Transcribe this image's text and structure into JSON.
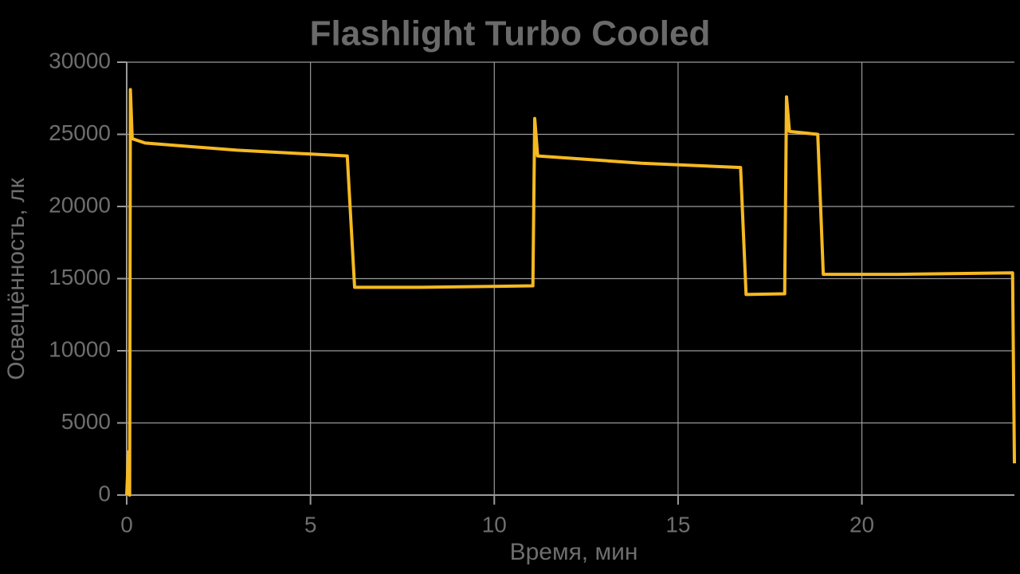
{
  "chart_data": {
    "type": "line",
    "title": "Flashlight Turbo Cooled",
    "x_label": "Время, мин",
    "y_label": "Освещённость, лк",
    "x": [
      0,
      0.05,
      0.08,
      0.1,
      0.15,
      0.5,
      3,
      6.0,
      6.2,
      8,
      11.05,
      11.1,
      11.18,
      14,
      16.7,
      16.85,
      17.9,
      17.95,
      18.03,
      18.8,
      18.95,
      21,
      24.1,
      24.15
    ],
    "series": [
      {
        "name": "Освещённость",
        "color": "#f5b921",
        "values": [
          0,
          3000,
          0,
          28100,
          24700,
          24400,
          23900,
          23500,
          14400,
          14400,
          14500,
          26100,
          23500,
          23000,
          22700,
          13900,
          13950,
          27600,
          25200,
          25000,
          15300,
          15300,
          15400,
          2200
        ]
      }
    ],
    "xlim": [
      0,
      24.15
    ],
    "ylim": [
      0,
      30000
    ],
    "xticks": [
      0,
      5,
      10,
      15,
      20
    ],
    "yticks": [
      0,
      5000,
      10000,
      15000,
      20000,
      25000,
      30000
    ],
    "grid": true
  }
}
